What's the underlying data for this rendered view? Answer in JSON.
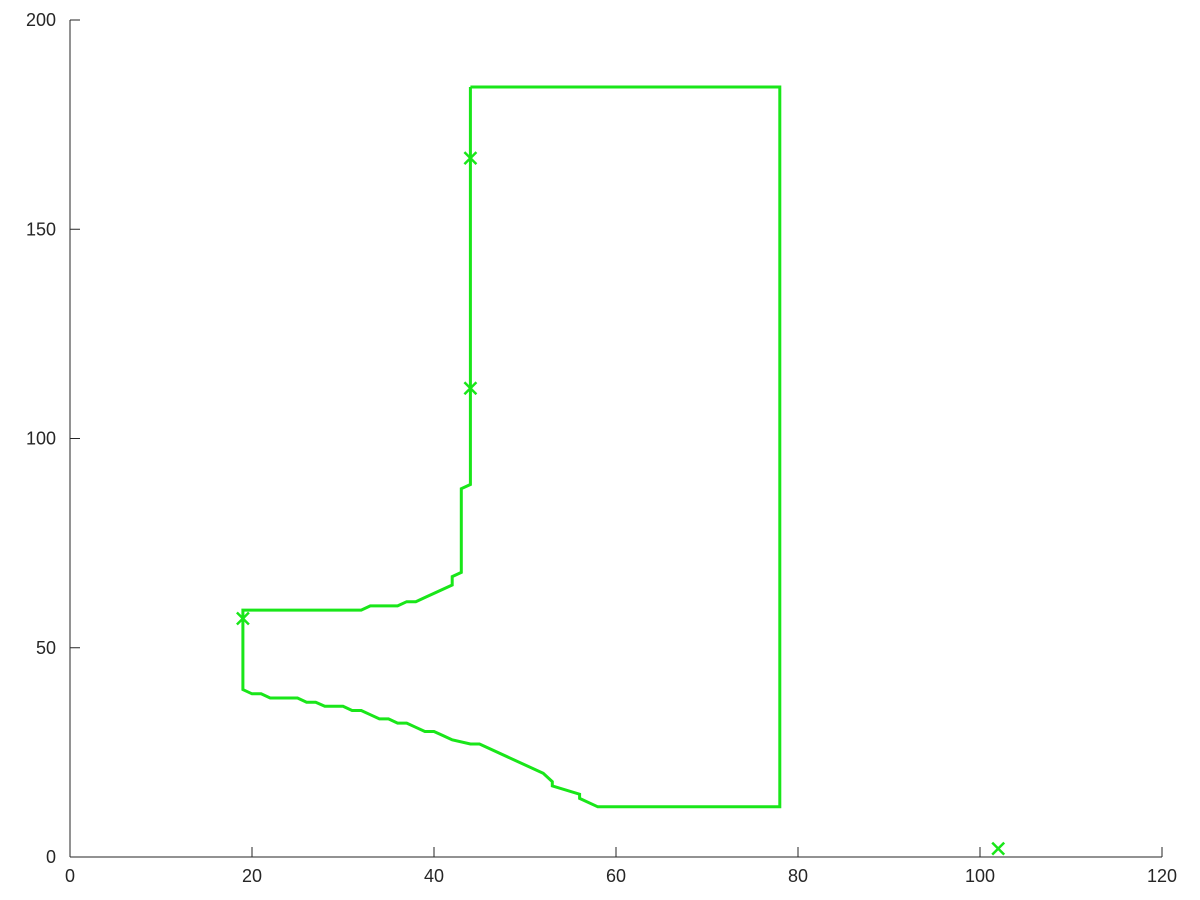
{
  "chart_data": {
    "type": "line",
    "title": "",
    "xlabel": "",
    "ylabel": "",
    "xlim": [
      0,
      120
    ],
    "ylim": [
      0,
      200
    ],
    "xticks": [
      0,
      20,
      40,
      60,
      80,
      100,
      120
    ],
    "yticks": [
      0,
      50,
      100,
      150,
      200
    ],
    "xtick_labels": [
      "0",
      "20",
      "40",
      "60",
      "80",
      "100",
      "120"
    ],
    "ytick_labels": [
      "0",
      "50",
      "100",
      "150",
      "200"
    ],
    "grid": false,
    "color": "#19e619",
    "series": [
      {
        "kind": "line",
        "points": [
          [
            44,
            184
          ],
          [
            78,
            184
          ],
          [
            78,
            12
          ],
          [
            58,
            12
          ],
          [
            56,
            14
          ],
          [
            56,
            15
          ],
          [
            53,
            17
          ],
          [
            53,
            18
          ],
          [
            52,
            20
          ],
          [
            45,
            27
          ],
          [
            44,
            27
          ],
          [
            42,
            28
          ],
          [
            41,
            29
          ],
          [
            40,
            30
          ],
          [
            39,
            30
          ],
          [
            38,
            31
          ],
          [
            37,
            32
          ],
          [
            36,
            32
          ],
          [
            35,
            33
          ],
          [
            34,
            33
          ],
          [
            33,
            34
          ],
          [
            32,
            35
          ],
          [
            31,
            35
          ],
          [
            30,
            36
          ],
          [
            28,
            36
          ],
          [
            27,
            37
          ],
          [
            26,
            37
          ],
          [
            25,
            38
          ],
          [
            22,
            38
          ],
          [
            21,
            39
          ],
          [
            20,
            39
          ],
          [
            19,
            40
          ],
          [
            19,
            59
          ],
          [
            32,
            59
          ],
          [
            33,
            60
          ],
          [
            36,
            60
          ],
          [
            37,
            61
          ],
          [
            38,
            61
          ],
          [
            39,
            62
          ],
          [
            42,
            65
          ],
          [
            42,
            67
          ],
          [
            43,
            68
          ],
          [
            43,
            88
          ],
          [
            44,
            89
          ],
          [
            44,
            184
          ]
        ]
      },
      {
        "kind": "markers",
        "marker": "x",
        "points": [
          [
            44,
            167
          ],
          [
            44,
            112
          ],
          [
            19,
            57
          ],
          [
            102,
            2
          ]
        ]
      }
    ]
  }
}
